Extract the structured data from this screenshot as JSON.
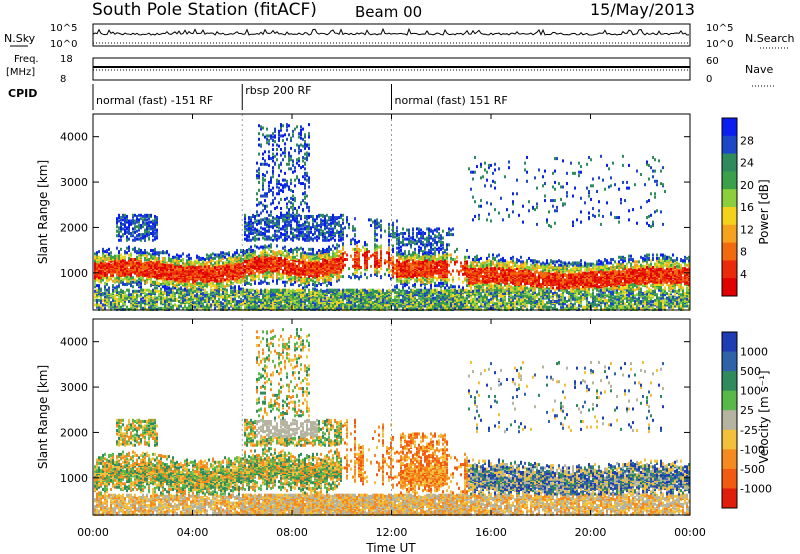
{
  "header": {
    "station": "South Pole Station (fitACF)",
    "beam": "Beam 00",
    "date": "15/May/2013"
  },
  "strip_labels": {
    "nsky": "N.Sky",
    "nsearch": "N.Search",
    "freq_top": "Freq.",
    "freq_unit": "[MHz]",
    "nave": "Nave",
    "cpid": "CPID"
  },
  "strip_ticks": {
    "nsky_hi": "10^5",
    "nsky_lo": "10^0",
    "nsearch_hi": "10^5",
    "nsearch_lo": "10^0",
    "freq_hi": "18",
    "freq_lo": "8",
    "nave_hi": "60",
    "nave_lo": "0"
  },
  "cpid_segments": [
    {
      "label": "normal (fast) -151 RF",
      "start_hour": 0,
      "end_hour": 6
    },
    {
      "label": "rbsp 200 RF",
      "start_hour": 6,
      "end_hour": 12
    },
    {
      "label": "normal (fast) 151 RF",
      "start_hour": 12,
      "end_hour": 24
    }
  ],
  "chart_data": [
    {
      "type": "heatmap",
      "ylabel": "Slant Range [km]",
      "xlim": [
        0,
        24
      ],
      "ylim": [
        180,
        4500
      ],
      "y_ticks": [
        "1000",
        "2000",
        "3000",
        "4000"
      ],
      "colorbar": {
        "label": "Power [dB]",
        "ticks": [
          "4",
          "8",
          "12",
          "16",
          "20",
          "24",
          "28"
        ],
        "colors": [
          "#0a1ef0",
          "#1e46c8",
          "#2f8a5e",
          "#3aa14a",
          "#8ccf3c",
          "#f2d21c",
          "#f5a21e",
          "#f26a0e",
          "#ea2a0a",
          "#e00000"
        ]
      }
    },
    {
      "type": "heatmap",
      "ylabel": "Slant Range [km]",
      "xlabel": "Time UT",
      "xlim": [
        0,
        24
      ],
      "ylim": [
        180,
        4500
      ],
      "x_ticks": [
        "00:00",
        "04:00",
        "08:00",
        "12:00",
        "16:00",
        "20:00",
        "00:00"
      ],
      "y_ticks": [
        "1000",
        "2000",
        "3000",
        "4000"
      ],
      "colorbar": {
        "label": "Velocity [m s⁻¹]",
        "ticks": [
          "1000",
          "500",
          "100",
          "25",
          "-25",
          "-100",
          "-500",
          "-1000"
        ],
        "colors": [
          "#1e3cb4",
          "#2f62a8",
          "#2f8a5e",
          "#5ab84a",
          "#b4b4a0",
          "#f2c03a",
          "#f58a1e",
          "#f25a12",
          "#e01e0a"
        ]
      }
    }
  ]
}
